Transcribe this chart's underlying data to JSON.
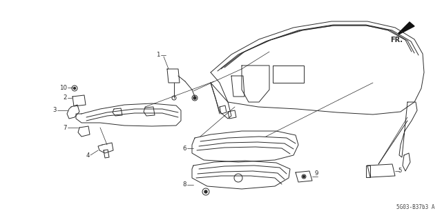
{
  "background_color": "#ffffff",
  "line_color": "#2a2a2a",
  "text_color": "#2a2a2a",
  "fig_width": 6.4,
  "fig_height": 3.19,
  "dpi": 100,
  "part_code": "5G03-B37b3 A",
  "fr_label": "FR.",
  "parts": [
    "1",
    "2",
    "3",
    "4",
    "5",
    "6",
    "7",
    "8",
    "9",
    "10"
  ]
}
